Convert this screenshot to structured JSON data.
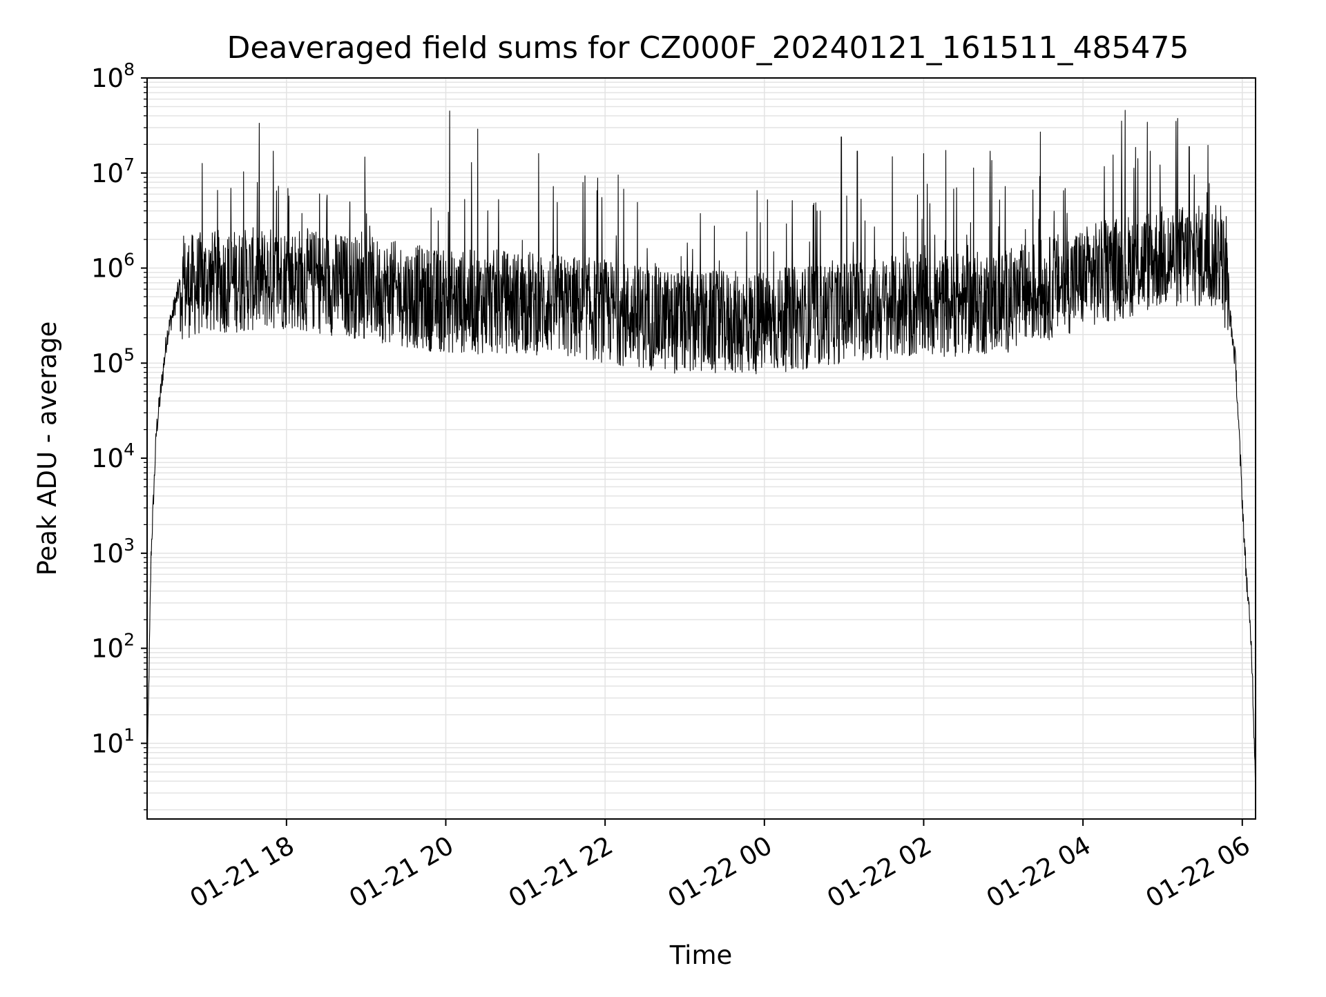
{
  "chart_data": {
    "type": "line",
    "title": "Deaveraged field sums for CZ000F_20240121_161511_485475",
    "xlabel": "Time",
    "ylabel": "Peak ADU - average",
    "yscale": "log",
    "ylim": [
      1.6,
      100000000
    ],
    "xlim": [
      "2024-01-21 16:15",
      "2024-01-22 06:10"
    ],
    "grid": "on (major and minor, light gray)",
    "x_ticks": [
      "2024-01-21 18:00",
      "2024-01-21 20:00",
      "2024-01-21 22:00",
      "2024-01-22 00:00",
      "2024-01-22 02:00",
      "2024-01-22 04:00",
      "2024-01-22 06:00"
    ],
    "x_tick_labels": [
      "01-21 18",
      "01-21 20",
      "01-21 22",
      "01-22 00",
      "01-22 02",
      "01-22 04",
      "01-22 06"
    ],
    "y_ticks": [
      {
        "value": 10,
        "base": "10",
        "exp": "1"
      },
      {
        "value": 100,
        "base": "10",
        "exp": "2"
      },
      {
        "value": 1000,
        "base": "10",
        "exp": "3"
      },
      {
        "value": 10000,
        "base": "10",
        "exp": "4"
      },
      {
        "value": 100000,
        "base": "10",
        "exp": "5"
      },
      {
        "value": 1000000,
        "base": "10",
        "exp": "6"
      },
      {
        "value": 10000000,
        "base": "10",
        "exp": "7"
      },
      {
        "value": 100000000,
        "base": "10",
        "exp": "8"
      }
    ],
    "series": [
      {
        "color": "#000000",
        "description_points": [
          {
            "x": "2024-01-21 16:15",
            "y": 4
          },
          {
            "x": "2024-01-21 16:18",
            "y": 1000
          },
          {
            "x": "2024-01-21 16:22",
            "y": 20000
          },
          {
            "x": "2024-01-21 16:30",
            "y": 200000
          },
          {
            "x": "2024-01-21 16:40",
            "y": 700000
          },
          {
            "x": "2024-01-21 17:00",
            "y": 800000
          },
          {
            "x": "2024-01-21 18:00",
            "y": 900000
          },
          {
            "x": "2024-01-21 19:00",
            "y": 700000
          },
          {
            "x": "2024-01-21 20:00",
            "y": 500000
          },
          {
            "x": "2024-01-21 21:00",
            "y": 500000
          },
          {
            "x": "2024-01-21 22:00",
            "y": 400000
          },
          {
            "x": "2024-01-21 23:00",
            "y": 300000
          },
          {
            "x": "2024-01-22 00:00",
            "y": 300000
          },
          {
            "x": "2024-01-22 01:00",
            "y": 400000
          },
          {
            "x": "2024-01-22 02:00",
            "y": 450000
          },
          {
            "x": "2024-01-22 03:00",
            "y": 500000
          },
          {
            "x": "2024-01-22 04:00",
            "y": 900000
          },
          {
            "x": "2024-01-22 05:00",
            "y": 1500000
          },
          {
            "x": "2024-01-22 05:45",
            "y": 1500000
          },
          {
            "x": "2024-01-22 05:55",
            "y": 100000
          },
          {
            "x": "2024-01-22 06:02",
            "y": 1000
          },
          {
            "x": "2024-01-22 06:07",
            "y": 100
          },
          {
            "x": "2024-01-22 06:10",
            "y": 4
          }
        ],
        "spikes": [
          {
            "x": "2024-01-21 20:03",
            "y": 45000000
          },
          {
            "x": "2024-01-21 20:24",
            "y": 29000000
          },
          {
            "x": "2024-01-21 17:50",
            "y": 17000000
          },
          {
            "x": "2024-01-22 00:58",
            "y": 24000000
          },
          {
            "x": "2024-01-22 03:28",
            "y": 27000000
          },
          {
            "x": "2024-01-22 05:10",
            "y": 35000000
          },
          {
            "x": "2024-01-22 01:10",
            "y": 17000000
          },
          {
            "x": "2024-01-22 02:00",
            "y": 16000000
          },
          {
            "x": "2024-01-22 02:50",
            "y": 17000000
          },
          {
            "x": "2024-01-22 05:20",
            "y": 19000000
          }
        ]
      }
    ]
  }
}
